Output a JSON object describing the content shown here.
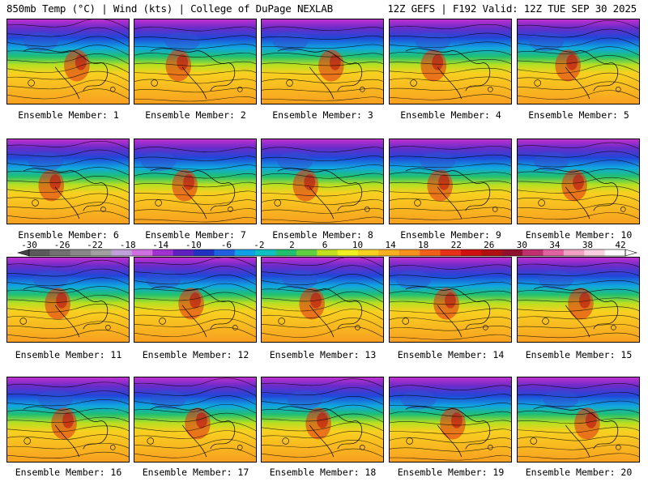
{
  "header": {
    "left": "850mb Temp (°C) | Wind (kts) | College of DuPage NEXLAB",
    "right": "12Z GEFS | F192 Valid: 12Z TUE SEP 30 2025"
  },
  "member_prefix": "Ensemble Member: ",
  "members": [
    "1",
    "2",
    "3",
    "4",
    "5",
    "6",
    "7",
    "8",
    "9",
    "10",
    "11",
    "12",
    "13",
    "14",
    "15",
    "16",
    "17",
    "18",
    "19",
    "20"
  ],
  "colorbar": {
    "labels": [
      "-30",
      "-26",
      "-22",
      "-18",
      "-14",
      "-10",
      "-6",
      "-2",
      "2",
      "6",
      "10",
      "14",
      "18",
      "22",
      "26",
      "30",
      "34",
      "38",
      "42"
    ],
    "colors": [
      "#5a5a5a",
      "#707070",
      "#888888",
      "#a0a0a0",
      "#c0a0d8",
      "#d070e0",
      "#a030d0",
      "#6020c0",
      "#2030c0",
      "#2060e0",
      "#10a0e8",
      "#10c0c0",
      "#20c070",
      "#60d040",
      "#c0e020",
      "#f0f020",
      "#f8d020",
      "#f8b020",
      "#f89020",
      "#f06018",
      "#e83018",
      "#d01010",
      "#b01010",
      "#901030",
      "#c03070",
      "#e060a0",
      "#f0a0c0",
      "#f8d0e0",
      "#ffffff"
    ]
  }
}
